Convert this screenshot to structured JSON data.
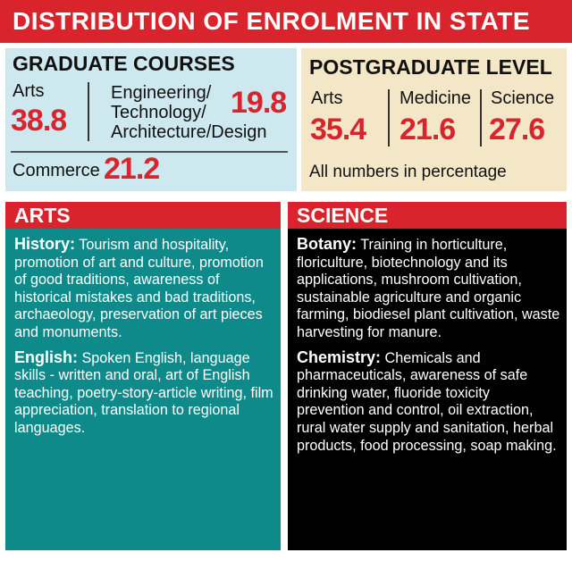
{
  "title": "DISTRIBUTION OF ENROLMENT IN STATE",
  "graduate": {
    "heading": "GRADUATE COURSES",
    "arts_label": "Arts",
    "arts_value": "38.8",
    "eng_label_1": "Engineering/",
    "eng_label_2": "Technology/",
    "eng_label_3": "Architecture/Design",
    "eng_value": "19.8",
    "commerce_label": "Commerce",
    "commerce_value": "21.2"
  },
  "postgraduate": {
    "heading": "POSTGRADUATE LEVEL",
    "arts_label": "Arts",
    "arts_value": "35.4",
    "medicine_label": "Medicine",
    "medicine_value": "21.6",
    "science_label": "Science",
    "science_value": "27.6",
    "note": "All numbers in percentage"
  },
  "arts": {
    "heading": "ARTS",
    "history_term": "History:",
    "history_text": "Tourism and hospitality, promotion of art and culture, promotion of good traditions, awareness of historical mistakes and bad traditions, archaeology, preservation of art pieces and monuments.",
    "english_term": "English:",
    "english_text": "Spoken English, language skills - written and oral, art of English teaching, poetry-story-article writing, film appreciation, translation to regional languages."
  },
  "science": {
    "heading": "SCIENCE",
    "botany_term": "Botany:",
    "botany_text": "Training in horticulture, floriculture, biotechnology and its applications, mushroom cultivation, sustainable agriculture and organic farming, biodiesel plant cultivation, waste harvesting for manure.",
    "chemistry_term": "Chemistry:",
    "chemistry_text": "Chemicals and pharmaceuticals, awareness of safe drinking water, fluoride toxicity prevention and control, oil extraction, rural water supply and sanitation, herbal products, food processing, soap making."
  },
  "colors": {
    "accent_red": "#d9232d",
    "graduate_bg": "#cde8ee",
    "postgraduate_bg": "#f3e7c8",
    "arts_bg": "#0f8a8a",
    "science_bg": "#000000"
  }
}
